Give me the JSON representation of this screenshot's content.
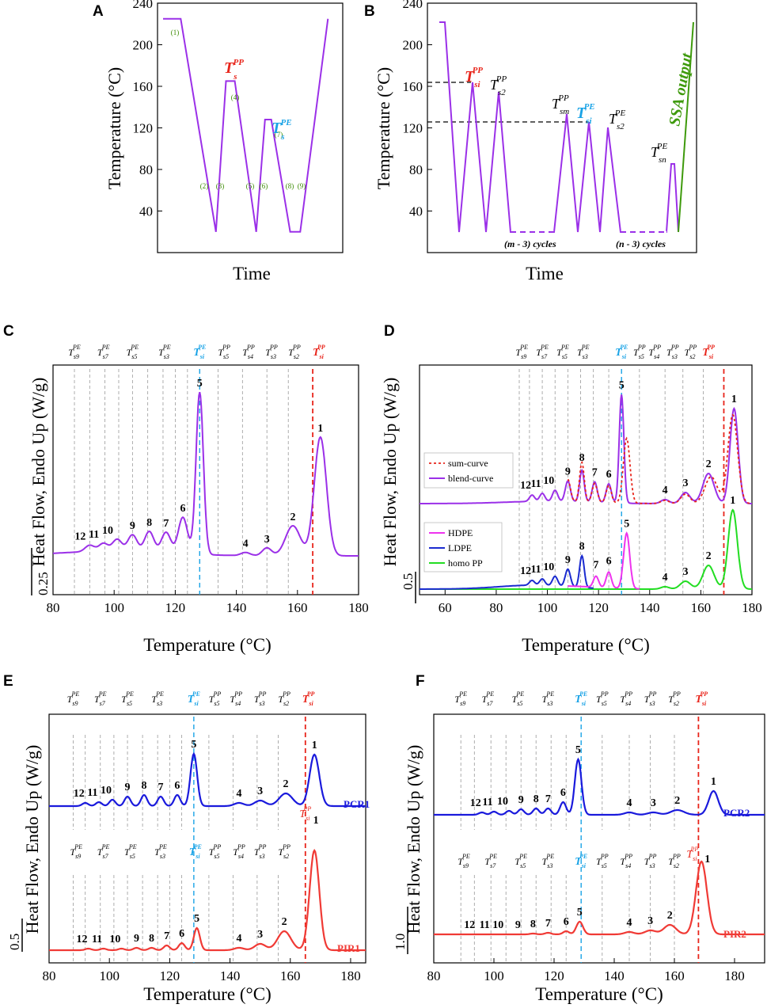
{
  "panels": {
    "A": "A",
    "B": "B",
    "C": "C",
    "D": "D",
    "E": "E",
    "F": "F"
  },
  "colors": {
    "protocol": "#9b30e8",
    "blend": "#9b30e8",
    "pp_label": "#e8251b",
    "pe_label": "#1aa3e6",
    "ssa": "#3e9a0c",
    "pcr": "#1a1adc",
    "pir": "#f03a35",
    "hdpe": "#ee33ee",
    "ldpe": "#1b2bd0",
    "homopp": "#22dd22",
    "sum": "#e8251b"
  },
  "chart_data": [
    {
      "id": "A",
      "type": "line",
      "title": "",
      "xlabel": "Time",
      "ylabel": "Temperature  (°C)",
      "ylim": [
        0,
        240
      ],
      "yticks": [
        40,
        80,
        120,
        160,
        200,
        240
      ],
      "x": [
        0,
        1.4,
        4.2,
        5.0,
        5.7,
        7.4,
        8.1,
        8.6,
        10.1,
        10.9,
        13.1
      ],
      "y": [
        225,
        225,
        20,
        165,
        165,
        20,
        128,
        128,
        20,
        20,
        225
      ],
      "step_labels": [
        "(1)",
        "(2)",
        "(3)",
        "(4)",
        "(5)",
        "(6)",
        "(7)",
        "(8)",
        "(9)"
      ],
      "annotations": [
        "T_s^PP",
        "T_s^PE"
      ]
    },
    {
      "id": "B",
      "type": "line",
      "title": "",
      "xlabel": "Time",
      "ylabel": "Temperature  (°C)",
      "ylim": [
        0,
        240
      ],
      "yticks": [
        40,
        80,
        120,
        160,
        200,
        240
      ],
      "dashed_levels": [
        165,
        127
      ],
      "annotations": [
        "T_si^PP",
        "T_s2^PP",
        "T_sm^PP",
        "T_si^PE",
        "T_s2^PE",
        "T_sn^PE",
        "SSA output"
      ],
      "cycle_labels": [
        "(m - 3) cycles",
        "(n - 3) cycles"
      ]
    },
    {
      "id": "C",
      "type": "line",
      "xlabel": "Temperature  (°C)",
      "ylabel": "Heat Flow, Endo Up  (W/g)",
      "xlim": [
        80,
        180
      ],
      "xticks": [
        80,
        100,
        120,
        140,
        160,
        180
      ],
      "scale_label": "0.25",
      "series": [
        {
          "name": "blend",
          "peaks": [
            {
              "label": "1",
              "x": 167.5,
              "h": 150
            },
            {
              "label": "2",
              "x": 158.5,
              "h": 38
            },
            {
              "label": "3",
              "x": 150,
              "h": 10
            },
            {
              "label": "4",
              "x": 143,
              "h": 4
            },
            {
              "label": "5",
              "x": 128,
              "h": 205
            },
            {
              "label": "6",
              "x": 122.5,
              "h": 46
            },
            {
              "label": "7",
              "x": 117,
              "h": 26
            },
            {
              "label": "8",
              "x": 111.5,
              "h": 26
            },
            {
              "label": "9",
              "x": 106,
              "h": 21
            },
            {
              "label": "10",
              "x": 101,
              "h": 15
            },
            {
              "label": "11",
              "x": 96.5,
              "h": 10
            },
            {
              "label": "12",
              "x": 92,
              "h": 8
            }
          ]
        }
      ],
      "t_labels": [
        "T_s9^PE",
        "T_s7^PE",
        "T_s5^PE",
        "T_s3^PE",
        "T_si^PE",
        "T_s5^PP",
        "T_s4^PP",
        "T_s3^PP",
        "T_s2^PP",
        "T_si^PP"
      ]
    },
    {
      "id": "D",
      "type": "line",
      "xlabel": "Temperature  (°C)",
      "ylabel": "Heat Flow, Endo Up  (W/g)",
      "xlim": [
        50,
        180
      ],
      "xticks": [
        60,
        80,
        100,
        120,
        140,
        160,
        180
      ],
      "scale_label": "0.5",
      "legend_top": [
        "sum-curve",
        "blend-curve"
      ],
      "legend_bottom": [
        "HDPE",
        "LDPE",
        "homo PP"
      ],
      "peak_labels_top": [
        "1",
        "2",
        "3",
        "4",
        "5",
        "6",
        "7",
        "8",
        "9",
        "10",
        "11",
        "12"
      ],
      "peak_labels_bottom": [
        "1",
        "2",
        "3",
        "4",
        "5",
        "6",
        "7",
        "8",
        "9",
        "10",
        "11",
        "12"
      ],
      "t_labels": [
        "T_s9^PE",
        "T_s7^PE",
        "T_s5^PE",
        "T_s3^PE",
        "T_si^PE",
        "T_s5^PP",
        "T_s4^PP",
        "T_s3^PP",
        "T_s2^PP",
        "T_si^PP"
      ]
    },
    {
      "id": "E",
      "type": "line",
      "xlabel": "Temperature  (°C)",
      "ylabel": "Heat Flow, Endo Up  (W/g)",
      "xlim": [
        80,
        185
      ],
      "xticks": [
        80,
        100,
        120,
        140,
        160,
        180
      ],
      "scale_label": "0.5",
      "series": [
        {
          "name": "PCR1"
        },
        {
          "name": "PIR1"
        }
      ]
    },
    {
      "id": "F",
      "type": "line",
      "xlabel": "Temperature  (°C)",
      "ylabel": "Heat Flow, Endo Up  (W/g)",
      "xlim": [
        80,
        190
      ],
      "xticks": [
        80,
        100,
        120,
        140,
        160,
        180
      ],
      "scale_label": "1.0",
      "series": [
        {
          "name": "PCR2"
        },
        {
          "name": "PIR2"
        }
      ]
    }
  ],
  "texts": {
    "time": "Time",
    "temp_axis": "Temperature  (°C)",
    "heat_axis": "Heat Flow, Endo Up  (W/g)",
    "temperature_c": "Temperature  (°C)",
    "ssa_output": "SSA output",
    "m_cycles": "(m - 3) cycles",
    "n_cycles": "(n - 3) cycles",
    "sum_curve": "sum-curve",
    "blend_curve": "blend-curve",
    "hdpe": "HDPE",
    "ldpe": "LDPE",
    "homopp": "homo PP",
    "pcr1": "PCR1",
    "pir1": "PIR1",
    "pcr2": "PCR2",
    "pir2": "PIR2",
    "scale_c": "0.25",
    "scale_d": "0.5",
    "scale_e": "0.5",
    "scale_f": "1.0"
  }
}
